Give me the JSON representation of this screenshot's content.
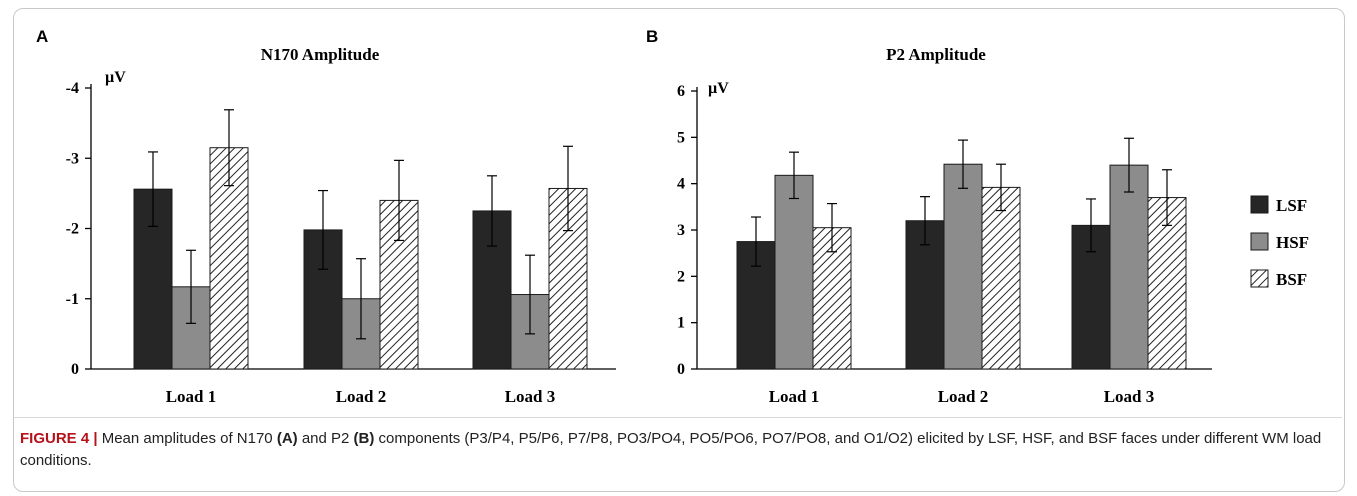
{
  "chart_data": [
    {
      "panel": "A",
      "type": "bar",
      "title": "N170 Amplitude",
      "unit": "µV",
      "categories": [
        "Load 1",
        "Load 2",
        "Load 3"
      ],
      "ylim": [
        0,
        -4
      ],
      "yticks": [
        "0",
        "-1",
        "-2",
        "-3",
        "-4"
      ],
      "inverted_y": true,
      "series": [
        {
          "name": "LSF",
          "values": [
            -2.56,
            -1.98,
            -2.25
          ],
          "errors": [
            0.53,
            0.56,
            0.5
          ],
          "color": "#262626",
          "pattern": "solid"
        },
        {
          "name": "HSF",
          "values": [
            -1.17,
            -1.0,
            -1.06
          ],
          "errors": [
            0.52,
            0.57,
            0.56
          ],
          "color": "#8c8c8c",
          "pattern": "solid"
        },
        {
          "name": "BSF",
          "values": [
            -3.15,
            -2.4,
            -2.57
          ],
          "errors": [
            0.54,
            0.57,
            0.6
          ],
          "color": "#ffffff",
          "pattern": "hatch"
        }
      ]
    },
    {
      "panel": "B",
      "type": "bar",
      "title": "P2 Amplitude",
      "unit": "µV",
      "categories": [
        "Load 1",
        "Load 2",
        "Load 3"
      ],
      "ylim": [
        0,
        6
      ],
      "yticks": [
        "0",
        "1",
        "2",
        "3",
        "4",
        "5",
        "6"
      ],
      "inverted_y": false,
      "series": [
        {
          "name": "LSF",
          "values": [
            2.75,
            3.2,
            3.1
          ],
          "errors": [
            0.53,
            0.52,
            0.57
          ],
          "color": "#262626",
          "pattern": "solid"
        },
        {
          "name": "HSF",
          "values": [
            4.18,
            4.42,
            4.4
          ],
          "errors": [
            0.5,
            0.52,
            0.58
          ],
          "color": "#8c8c8c",
          "pattern": "solid"
        },
        {
          "name": "BSF",
          "values": [
            3.05,
            3.92,
            3.7
          ],
          "errors": [
            0.52,
            0.5,
            0.6
          ],
          "color": "#ffffff",
          "pattern": "hatch"
        }
      ]
    }
  ],
  "legend": {
    "placement": "right",
    "items": [
      {
        "name": "LSF",
        "color": "#262626",
        "pattern": "solid"
      },
      {
        "name": "HSF",
        "color": "#8c8c8c",
        "pattern": "solid"
      },
      {
        "name": "BSF",
        "color": "#ffffff",
        "pattern": "hatch"
      }
    ]
  },
  "caption": {
    "label": "FIGURE 4 |",
    "text_1": " Mean amplitudes of N170 ",
    "ref_a": "(A)",
    "text_2": " and P2 ",
    "ref_b": "(B)",
    "text_3": " components (P3/P4, P5/P6, P7/P8, PO3/PO4, PO5/PO6, PO7/PO8, and O1/O2) elicited by LSF, HSF, and BSF faces under different WM load conditions."
  }
}
